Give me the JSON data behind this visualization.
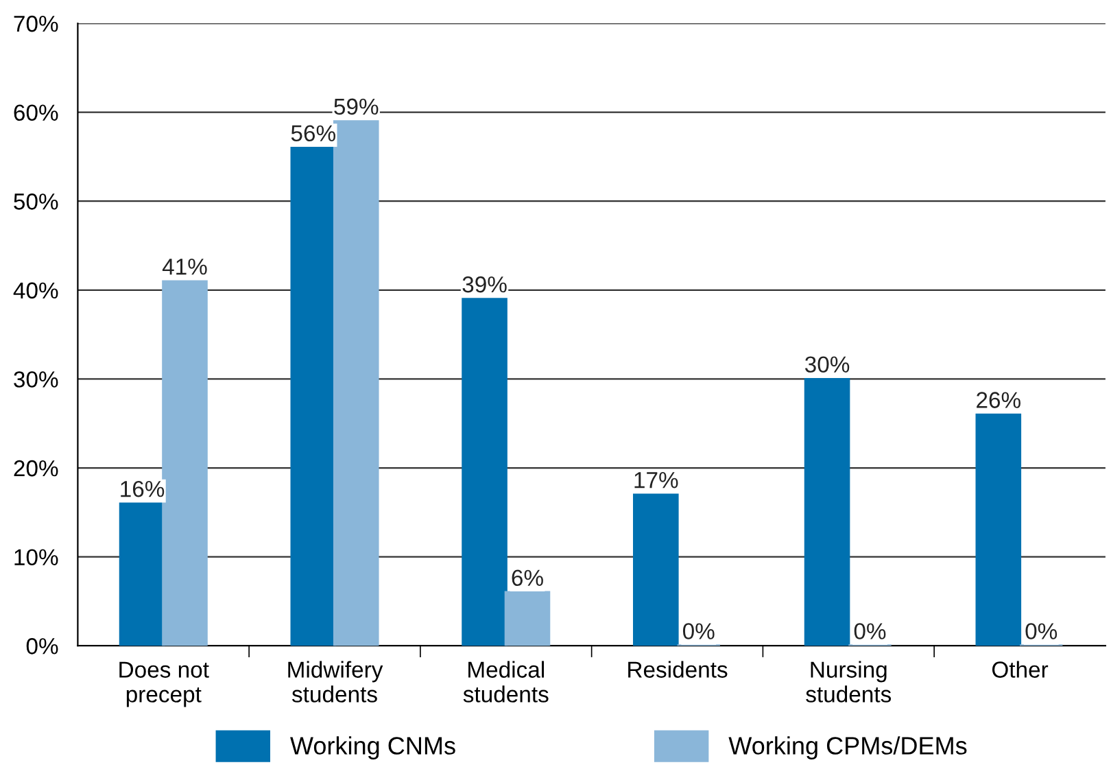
{
  "chart_data": {
    "type": "bar",
    "categories": [
      "Does not\nprecept",
      "Midwifery\nstudents",
      "Medical\nstudents",
      "Residents",
      "Nursing\nstudents",
      "Other"
    ],
    "series": [
      {
        "name": "Working CNMs",
        "color": "#0071b0",
        "values": [
          16,
          56,
          39,
          17,
          30,
          26
        ],
        "value_labels": [
          "16%",
          "56%",
          "39%",
          "17%",
          "30%",
          "26%"
        ]
      },
      {
        "name": "Working CPMs/DEMs",
        "color": "#8ab6d9",
        "values": [
          41,
          59,
          6,
          0,
          0,
          0
        ],
        "value_labels": [
          "41%",
          "59%",
          "6%",
          "0%",
          "0%",
          "0%"
        ]
      }
    ],
    "ylim": [
      0,
      70
    ],
    "yticks": [
      {
        "value": 0,
        "label": "0%"
      },
      {
        "value": 10,
        "label": "10%"
      },
      {
        "value": 20,
        "label": "20%"
      },
      {
        "value": 30,
        "label": "30%"
      },
      {
        "value": 40,
        "label": "40%"
      },
      {
        "value": 50,
        "label": "50%"
      },
      {
        "value": 60,
        "label": "60%"
      },
      {
        "value": 70,
        "label": "70%"
      }
    ],
    "grid": "y",
    "legend": "bottom"
  }
}
